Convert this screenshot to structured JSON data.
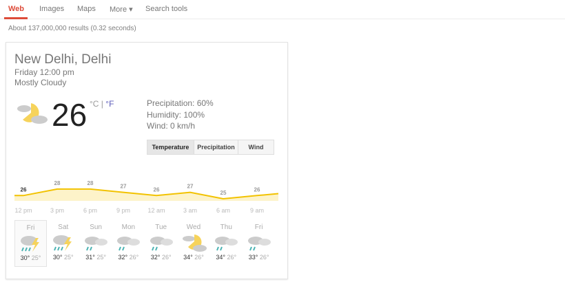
{
  "nav": {
    "items": [
      {
        "label": "Web",
        "active": true
      },
      {
        "label": "Images"
      },
      {
        "label": "Maps"
      },
      {
        "label": "More ▾"
      },
      {
        "label": "Search tools"
      }
    ]
  },
  "stats": "About 137,000,000 results (0.32 seconds)",
  "weather": {
    "location": "New Delhi, Delhi",
    "datetime": "Friday 12:00 pm",
    "condition": "Mostly Cloudy",
    "condition_icon": "partly-cloudy-icon",
    "temperature": "26",
    "unit_c": "°C",
    "unit_sep": " | ",
    "unit_f": "°F",
    "precipitation": "Precipitation: 60%",
    "humidity": "Humidity: 100%",
    "wind": "Wind: 0 km/h",
    "tabs": [
      "Temperature",
      "Precipitation",
      "Wind"
    ],
    "active_tab": "Temperature",
    "colors": {
      "line": "#f2c200",
      "fill": "#fdf3c9",
      "accent": "#dd4b39"
    }
  },
  "chart_data": {
    "type": "area",
    "x": [
      "12 pm",
      "3 pm",
      "6 pm",
      "9 pm",
      "12 am",
      "3 am",
      "6 am",
      "9 am"
    ],
    "values": [
      26,
      28,
      28,
      27,
      26,
      27,
      25,
      26
    ],
    "labels": [
      "26",
      "28",
      "28",
      "27",
      "26",
      "27",
      "25",
      "26"
    ]
  },
  "forecast": [
    {
      "day": "Fri",
      "icon": "thunderstorm-icon",
      "high": "30°",
      "low": "25°"
    },
    {
      "day": "Sat",
      "icon": "thunderstorm-icon",
      "high": "30°",
      "low": "25°"
    },
    {
      "day": "Sun",
      "icon": "rain-cloud-icon",
      "high": "31°",
      "low": "25°"
    },
    {
      "day": "Mon",
      "icon": "rain-cloud-icon",
      "high": "32°",
      "low": "26°"
    },
    {
      "day": "Tue",
      "icon": "rain-cloud-icon",
      "high": "32°",
      "low": "26°"
    },
    {
      "day": "Wed",
      "icon": "partly-cloudy-icon",
      "high": "34°",
      "low": "26°"
    },
    {
      "day": "Thu",
      "icon": "rain-cloud-icon",
      "high": "34°",
      "low": "26°"
    },
    {
      "day": "Fri",
      "icon": "rain-cloud-icon",
      "high": "33°",
      "low": "26°"
    }
  ]
}
